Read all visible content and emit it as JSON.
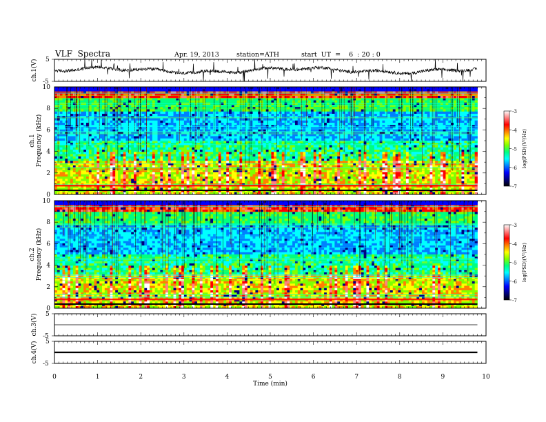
{
  "header": {
    "title": "VLF  Spectra",
    "date": "Apr. 19, 2013",
    "station": "station=ATH",
    "start": "start  UT  =    6  : 20 : 0"
  },
  "chart_data": [
    {
      "type": "line",
      "name": "ch1-waveform",
      "ylabel": "ch.1(V)",
      "yticks": [
        "5",
        "-5"
      ],
      "ylim": [
        -5,
        5
      ],
      "xlim": [
        0,
        10
      ],
      "baseline": 0,
      "data_end_min": 9.8,
      "grid": false
    },
    {
      "type": "heatmap",
      "name": "ch1-spectrogram",
      "channel_label": "ch.1",
      "ylabel": "Frequency  (kHz)",
      "yticks": [
        "0",
        "2",
        "4",
        "6",
        "8",
        "10"
      ],
      "ylim": [
        0,
        10
      ],
      "xlim": [
        0,
        10
      ],
      "data_end_min": 9.8,
      "colorbar": {
        "label": "log(PSD)(V²/Hz)",
        "ticks": [
          "-3",
          "-4",
          "-5",
          "-6",
          "-7"
        ],
        "range": [
          -7,
          -3
        ],
        "colors": [
          "#000000",
          "#000080",
          "#0000ff",
          "#0080ff",
          "#00ffff",
          "#00ff80",
          "#80ff00",
          "#ffff00",
          "#ff8000",
          "#ff0000",
          "#ff8080",
          "#ffffff"
        ]
      }
    },
    {
      "type": "heatmap",
      "name": "ch2-spectrogram",
      "channel_label": "ch.2",
      "ylabel": "Frequency  (kHz)",
      "yticks": [
        "0",
        "2",
        "4",
        "6",
        "8",
        "10"
      ],
      "ylim": [
        0,
        10
      ],
      "xlim": [
        0,
        10
      ],
      "data_end_min": 9.8,
      "colorbar": {
        "label": "log(PSD)(V²/Hz)",
        "ticks": [
          "-3",
          "-4",
          "-5",
          "-6",
          "-7"
        ],
        "range": [
          -7,
          -3
        ],
        "colors": [
          "#000000",
          "#000080",
          "#0000ff",
          "#0080ff",
          "#00ffff",
          "#00ff80",
          "#80ff00",
          "#ffff00",
          "#ff8000",
          "#ff0000",
          "#ff8080",
          "#ffffff"
        ]
      }
    },
    {
      "type": "line",
      "name": "ch3-waveform",
      "ylabel": "ch.3(V)",
      "yticks": [
        "5",
        "-5"
      ],
      "ylim": [
        -5,
        5
      ],
      "xlim": [
        0,
        10
      ],
      "baseline": 0,
      "data_end_min": 9.8,
      "grid": false
    },
    {
      "type": "line",
      "name": "ch4-waveform",
      "ylabel": "ch.4(V)",
      "yticks": [
        "5",
        "-5"
      ],
      "ylim": [
        -5,
        5
      ],
      "xlim": [
        0,
        10
      ],
      "baseline": 0,
      "data_end_min": 9.8,
      "xlabel": "Time  (min)",
      "xticks": [
        "0",
        "1",
        "2",
        "3",
        "4",
        "5",
        "6",
        "7",
        "8",
        "9",
        "10"
      ],
      "grid": false
    }
  ]
}
